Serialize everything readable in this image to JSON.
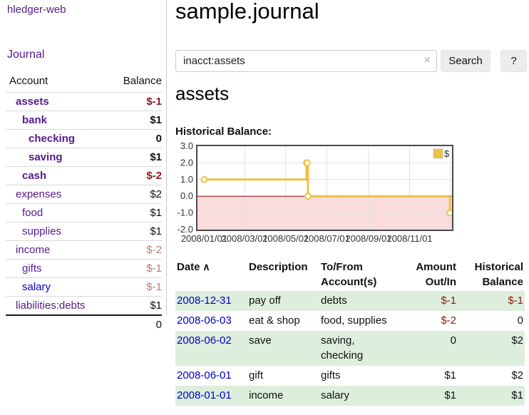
{
  "colors": {
    "link-purple": "#551a8b",
    "link-blue": "#0000cc",
    "negative-strong": "#8b1a1a",
    "negative-soft": "#bb7777",
    "row-green": "#ddeedd",
    "series-yellow": "#edc240",
    "chart-negative-fill": "#fadcdc",
    "chart-zero-line": "#8b0000",
    "chart-grid": "#e3e3e3",
    "chart-border": "#4a4a4a",
    "button-bg": "#ececec",
    "divider": "#cccccc"
  },
  "sidebar": {
    "brand": "hledger-web",
    "journal_link": "Journal",
    "accounts_table": {
      "headers": [
        "Account",
        "Balance"
      ],
      "rows": [
        {
          "name": "assets",
          "balance": "$-1",
          "indent": 1,
          "bold": true,
          "name_style": "purple",
          "balance_style": "negative"
        },
        {
          "name": "bank",
          "balance": "$1",
          "indent": 2,
          "bold": true,
          "name_style": "purple",
          "balance_style": "normal"
        },
        {
          "name": "checking",
          "balance": "0",
          "indent": 3,
          "bold": true,
          "name_style": "purple",
          "balance_style": "normal"
        },
        {
          "name": "saving",
          "balance": "$1",
          "indent": 3,
          "bold": true,
          "name_style": "purple",
          "balance_style": "normal"
        },
        {
          "name": "cash",
          "balance": "$-2",
          "indent": 2,
          "bold": true,
          "name_style": "purple",
          "balance_style": "negative"
        },
        {
          "name": "expenses",
          "balance": "$2",
          "indent": 1,
          "bold": false,
          "name_style": "purple",
          "balance_style": "normal"
        },
        {
          "name": "food",
          "balance": "$1",
          "indent": 2,
          "bold": false,
          "name_style": "purple",
          "balance_style": "normal"
        },
        {
          "name": "supplies",
          "balance": "$1",
          "indent": 2,
          "bold": false,
          "name_style": "purple",
          "balance_style": "normal"
        },
        {
          "name": "income",
          "balance": "$-2",
          "indent": 1,
          "bold": false,
          "name_style": "purple",
          "balance_style": "negative-soft"
        },
        {
          "name": "gifts",
          "balance": "$-1",
          "indent": 2,
          "bold": false,
          "name_style": "purple",
          "balance_style": "negative-soft"
        },
        {
          "name": "salary",
          "balance": "$-1",
          "indent": 2,
          "bold": false,
          "name_style": "blue",
          "balance_style": "negative-soft"
        },
        {
          "name": "liabilities:debts",
          "balance": "$1",
          "indent": 1,
          "bold": false,
          "name_style": "purple",
          "balance_style": "normal"
        }
      ],
      "total": "0"
    }
  },
  "main": {
    "title": "sample.journal",
    "search": {
      "value": "inacct:assets",
      "clear_icon": "×",
      "button_label": "Search",
      "help_label": "?"
    },
    "account_heading": "assets",
    "section_label": "Historical Balance:",
    "register": {
      "headers": [
        {
          "label": "Date",
          "icon": "∧",
          "align": "left"
        },
        {
          "label": "Description",
          "align": "left"
        },
        {
          "label": "To/From Account(s)",
          "align": "left"
        },
        {
          "label": "Amount Out/In",
          "align": "right"
        },
        {
          "label": "Historical Balance",
          "align": "right"
        }
      ],
      "rows": [
        {
          "date": "2008-12-31",
          "description": "pay off",
          "accounts": "debts",
          "amount": "$-1",
          "balance": "$-1"
        },
        {
          "date": "2008-06-03",
          "description": "eat & shop",
          "accounts": "food, supplies",
          "amount": "$-2",
          "balance": "0"
        },
        {
          "date": "2008-06-02",
          "description": "save",
          "accounts": "saving, checking",
          "amount": "0",
          "balance": "$2"
        },
        {
          "date": "2008-06-01",
          "description": "gift",
          "accounts": "gifts",
          "amount": "$1",
          "balance": "$2"
        },
        {
          "date": "2008-01-01",
          "description": "income",
          "accounts": "salary",
          "amount": "$1",
          "balance": "$1"
        }
      ]
    }
  },
  "chart_data": {
    "type": "line",
    "title": "Historical Balance:",
    "series": [
      {
        "name": "$",
        "color": "#edc240",
        "steps": true,
        "points": [
          {
            "date": "2008/01/01",
            "value": 1
          },
          {
            "date": "2008/06/01",
            "value": 2
          },
          {
            "date": "2008/06/02",
            "value": 2
          },
          {
            "date": "2008/06/03",
            "value": 0
          },
          {
            "date": "2008/12/31",
            "value": -1
          }
        ]
      }
    ],
    "x_ticks": [
      "2008/01/01",
      "2008/03/01",
      "2008/05/01",
      "2008/07/01",
      "2008/09/01",
      "2008/11/01"
    ],
    "x_grid_dates": [
      "2008/03/01",
      "2008/05/01",
      "2008/07/01",
      "2008/09/01",
      "2008/11/01",
      "2009/01/01"
    ],
    "y_ticks": [
      "3.0",
      "2.0",
      "1.0",
      "0.0",
      "-1.0",
      "-2.0"
    ],
    "ylim": [
      -2,
      3
    ],
    "xlim_dates": [
      "2007/12/22",
      "2009/01/03"
    ],
    "grid": true,
    "negative_region_color": "#fadcdc",
    "zero_line_color": "#8b0000",
    "legend": {
      "label": "$",
      "position": "top-right"
    }
  }
}
